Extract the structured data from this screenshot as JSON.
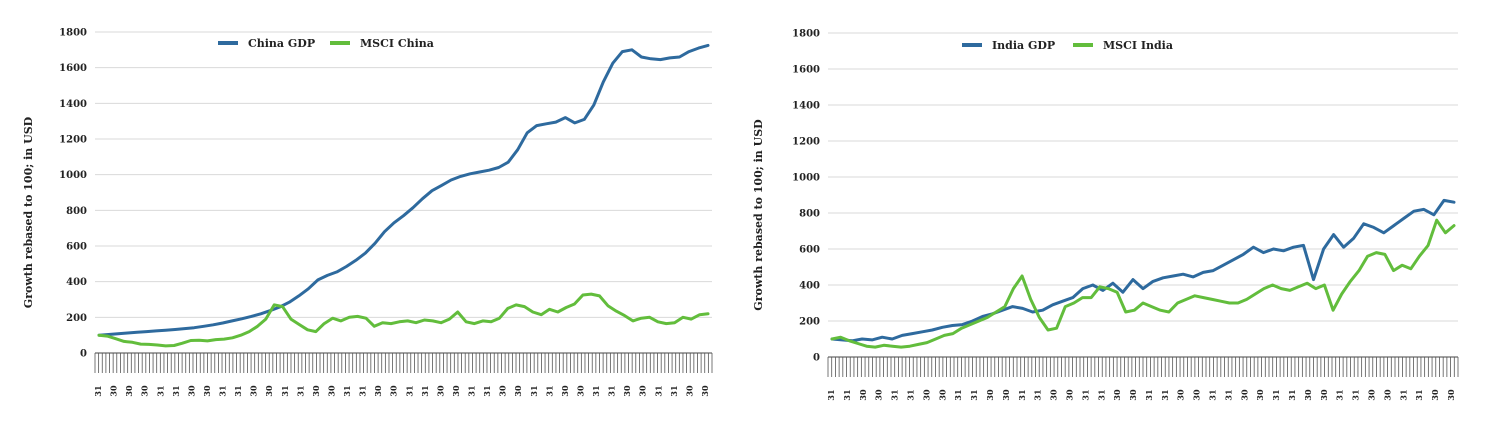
{
  "colors": {
    "gdp": "#2e6a9e",
    "msci": "#62bd3c",
    "grid": "#d9d9d9",
    "axis": "#444444"
  },
  "chart_data": [
    {
      "type": "line",
      "title": "",
      "ylabel": "Growth rebased to 100; in USD",
      "ylim": [
        0,
        1800
      ],
      "yticks": [
        0,
        200,
        400,
        600,
        800,
        1000,
        1200,
        1400,
        1600,
        1800
      ],
      "grid": true,
      "legend_position": "top-center",
      "x_tick_labels": [
        "31",
        "30",
        "30",
        "30",
        "31",
        "31",
        "30",
        "30",
        "31",
        "31",
        "30",
        "30",
        "31",
        "31",
        "30",
        "30",
        "31",
        "31",
        "30",
        "30",
        "31",
        "31",
        "30",
        "30",
        "31",
        "31",
        "30",
        "30",
        "31",
        "31",
        "30",
        "30",
        "31",
        "31",
        "30",
        "30",
        "31",
        "31",
        "30",
        "30"
      ],
      "series": [
        {
          "name": "China GDP",
          "color_key": "gdp",
          "values": [
            100,
            104,
            108,
            112,
            116,
            120,
            124,
            128,
            132,
            137,
            142,
            150,
            158,
            168,
            180,
            192,
            205,
            220,
            238,
            258,
            285,
            320,
            360,
            410,
            435,
            455,
            485,
            520,
            560,
            615,
            680,
            730,
            770,
            815,
            865,
            910,
            940,
            970,
            990,
            1005,
            1015,
            1025,
            1040,
            1070,
            1140,
            1235,
            1275,
            1285,
            1295,
            1320,
            1290,
            1310,
            1390,
            1520,
            1625,
            1690,
            1700,
            1660,
            1650,
            1645,
            1655,
            1660,
            1690,
            1710,
            1725
          ]
        },
        {
          "name": "MSCI China",
          "color_key": "msci",
          "values": [
            100,
            95,
            80,
            65,
            60,
            50,
            48,
            45,
            40,
            42,
            55,
            70,
            72,
            68,
            75,
            78,
            85,
            100,
            120,
            150,
            190,
            270,
            260,
            190,
            160,
            130,
            120,
            165,
            195,
            180,
            200,
            205,
            195,
            150,
            170,
            165,
            175,
            180,
            170,
            185,
            180,
            170,
            190,
            230,
            175,
            165,
            180,
            175,
            195,
            250,
            270,
            260,
            230,
            215,
            245,
            230,
            255,
            275,
            325,
            330,
            320,
            265,
            235,
            210,
            180,
            195,
            200,
            175,
            165,
            170,
            200,
            190,
            215,
            220
          ]
        }
      ]
    },
    {
      "type": "line",
      "title": "",
      "ylabel": "Growth rebased to 100; in USD",
      "ylim": [
        0,
        1800
      ],
      "yticks": [
        0,
        200,
        400,
        600,
        800,
        1000,
        1200,
        1400,
        1600,
        1800
      ],
      "grid": true,
      "legend_position": "top-center",
      "x_tick_labels": [
        "31",
        "31",
        "30",
        "30",
        "31",
        "31",
        "30",
        "30",
        "31",
        "31",
        "30",
        "30",
        "31",
        "31",
        "30",
        "30",
        "31",
        "31",
        "30",
        "30",
        "31",
        "31",
        "30",
        "30",
        "31",
        "31",
        "30",
        "30",
        "31",
        "31",
        "30",
        "30",
        "31",
        "31",
        "30",
        "30",
        "31",
        "31",
        "30",
        "30"
      ],
      "series": [
        {
          "name": "India GDP",
          "color_key": "gdp",
          "values": [
            100,
            95,
            90,
            100,
            95,
            110,
            100,
            120,
            130,
            140,
            150,
            165,
            175,
            180,
            200,
            225,
            240,
            260,
            280,
            270,
            250,
            260,
            290,
            310,
            330,
            380,
            400,
            370,
            410,
            360,
            430,
            380,
            420,
            440,
            450,
            460,
            445,
            470,
            480,
            510,
            540,
            570,
            610,
            580,
            600,
            590,
            610,
            620,
            430,
            600,
            680,
            610,
            660,
            740,
            720,
            690,
            730,
            770,
            810,
            820,
            790,
            870,
            860
          ]
        },
        {
          "name": "MSCI India",
          "color_key": "msci",
          "values": [
            100,
            110,
            90,
            75,
            60,
            55,
            65,
            60,
            55,
            60,
            70,
            80,
            100,
            120,
            130,
            160,
            180,
            200,
            220,
            250,
            280,
            380,
            450,
            320,
            220,
            150,
            160,
            280,
            300,
            330,
            330,
            390,
            380,
            360,
            250,
            260,
            300,
            280,
            260,
            250,
            300,
            320,
            340,
            330,
            320,
            310,
            300,
            300,
            320,
            350,
            380,
            400,
            380,
            370,
            390,
            410,
            380,
            400,
            260,
            350,
            420,
            480,
            560,
            580,
            570,
            480,
            510,
            490,
            560,
            620,
            760,
            690,
            730
          ]
        }
      ]
    }
  ]
}
